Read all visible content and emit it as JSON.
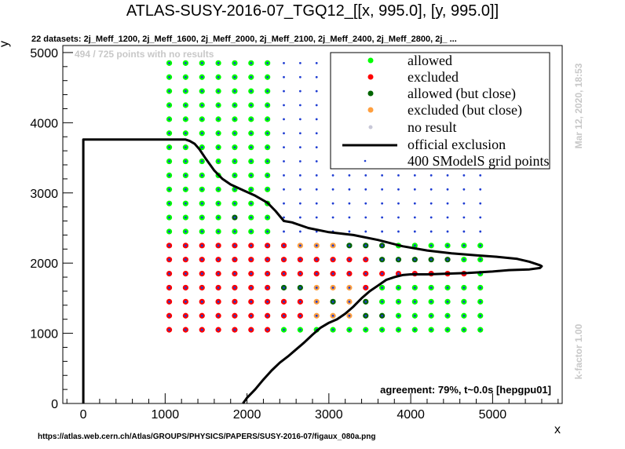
{
  "colors": {
    "allowed": "#00ff00",
    "excluded": "#ff0000",
    "allowed_close": "#006400",
    "excluded_close": "#ff9f3f",
    "no_result": "#0000ff",
    "grid_dot": "#1e3cd2",
    "official": "#000000",
    "stamp": "#c8c8c8"
  },
  "chart_data": {
    "type": "scatter",
    "title": "ATLAS-SUSY-2016-07_TGQ12_[[x, 995.0], [y, 995.0]]",
    "subtitle": "22 datasets: 2j_Meff_1200, 2j_Meff_1600, 2j_Meff_2000, 2j_Meff_2100, 2j_Meff_2400, 2j_Meff_2800, 2j_ ...",
    "xlabel": "x",
    "ylabel": "y",
    "xlim": [
      -250,
      5850
    ],
    "ylim": [
      0,
      5100
    ],
    "xticks": [
      0,
      1000,
      2000,
      3000,
      4000,
      5000
    ],
    "yticks": [
      0,
      1000,
      2000,
      3000,
      4000,
      5000
    ],
    "grid": false,
    "legend_placement": "top-right",
    "legend": [
      {
        "label": "allowed",
        "kind": "allowed"
      },
      {
        "label": "excluded",
        "kind": "excluded"
      },
      {
        "label": "allowed (but close)",
        "kind": "allowed_close"
      },
      {
        "label": "excluded (but close)",
        "kind": "excluded_close"
      },
      {
        "label": "no result",
        "kind": "no_result"
      },
      {
        "label": "official exclusion",
        "kind": "line"
      },
      {
        "label": "400 SModelS grid points",
        "kind": "grid"
      }
    ],
    "annotations": {
      "no_results": "494 / 725 points with no results",
      "agreement": "agreement: 79%, t~0.0s [hepgpu01]",
      "timestamp": "Mar 12, 2020, 18:53",
      "kfactor": "k-factor 1.00",
      "source": "https://atlas.web.cern.ch/Atlas/GROUPS/PHYSICS/PAPERS/SUSY-2016-07/figaux_080a.png"
    },
    "grid_x": [
      1050,
      1250,
      1450,
      1650,
      1850,
      2050,
      2250,
      2450,
      2650,
      2850,
      3050,
      3250,
      3450,
      3650,
      3850,
      4050,
      4250,
      4450,
      4650,
      4850
    ],
    "grid_y": [
      1050,
      1250,
      1450,
      1650,
      1850,
      2050,
      2250,
      2450,
      2650,
      2850,
      3050,
      3250,
      3450,
      3650,
      3850,
      4050,
      4250,
      4450,
      4650,
      4850
    ],
    "result_rows": [
      {
        "y": 4850,
        "codes": "AAAAAAA"
      },
      {
        "y": 4650,
        "codes": "AAAAAAA"
      },
      {
        "y": 4450,
        "codes": "AAAAAAA"
      },
      {
        "y": 4250,
        "codes": "AAAAAAA"
      },
      {
        "y": 4050,
        "codes": "AAAAAAA"
      },
      {
        "y": 3850,
        "codes": "AAAAAAA"
      },
      {
        "y": 3650,
        "codes": "AAAAAAA"
      },
      {
        "y": 3450,
        "codes": "AAAAAAA"
      },
      {
        "y": 3250,
        "codes": "AAAAAAA"
      },
      {
        "y": 3050,
        "codes": "AAAAAAA"
      },
      {
        "y": 2850,
        "codes": "AAAAAAA"
      },
      {
        "y": 2650,
        "codes": "AAAAGAA"
      },
      {
        "y": 2450,
        "codes": "AAAAAAA"
      },
      {
        "y": 2250,
        "codes": "XXXXXXXXOOOGGGAAAAAA"
      },
      {
        "y": 2050,
        "codes": "XXXXXXXXXXXXXGGGGGAA"
      },
      {
        "y": 1850,
        "codes": "XXXXXXXXXXXXXXXXXXXA"
      },
      {
        "y": 1650,
        "codes": "XXXXXXXGGOOOXAAAAAAA"
      },
      {
        "y": 1450,
        "codes": "XXXXXXXXXOGOGAAAAAAA"
      },
      {
        "y": 1250,
        "codes": "XXXXXXXXXOOOGGAAAAAA"
      },
      {
        "y": 1050,
        "codes": "XXXXXXXAAAAAAAAAAAAA"
      }
    ],
    "official_exclusion": [
      [
        0,
        0
      ],
      [
        0,
        3760
      ],
      [
        1250,
        3760
      ],
      [
        1300,
        3740
      ],
      [
        1360,
        3700
      ],
      [
        1420,
        3620
      ],
      [
        1500,
        3480
      ],
      [
        1600,
        3320
      ],
      [
        1700,
        3200
      ],
      [
        1800,
        3120
      ],
      [
        1950,
        3040
      ],
      [
        2100,
        2960
      ],
      [
        2250,
        2860
      ],
      [
        2350,
        2740
      ],
      [
        2450,
        2600
      ],
      [
        2550,
        2580
      ],
      [
        2750,
        2500
      ],
      [
        3000,
        2440
      ],
      [
        3300,
        2400
      ],
      [
        3600,
        2330
      ],
      [
        3900,
        2240
      ],
      [
        4200,
        2180
      ],
      [
        4500,
        2140
      ],
      [
        4800,
        2110
      ],
      [
        5050,
        2090
      ],
      [
        5300,
        2060
      ],
      [
        5450,
        2020
      ],
      [
        5580,
        1970
      ],
      [
        5600,
        1955
      ],
      [
        5580,
        1930
      ],
      [
        5450,
        1910
      ],
      [
        5200,
        1900
      ],
      [
        5000,
        1880
      ],
      [
        4700,
        1860
      ],
      [
        4450,
        1850
      ],
      [
        4200,
        1840
      ],
      [
        4000,
        1840
      ],
      [
        3900,
        1830
      ],
      [
        3800,
        1800
      ],
      [
        3700,
        1760
      ],
      [
        3600,
        1680
      ],
      [
        3500,
        1600
      ],
      [
        3400,
        1500
      ],
      [
        3300,
        1380
      ],
      [
        3200,
        1280
      ],
      [
        3100,
        1200
      ],
      [
        3000,
        1150
      ],
      [
        2900,
        1080
      ],
      [
        2800,
        980
      ],
      [
        2700,
        870
      ],
      [
        2600,
        770
      ],
      [
        2500,
        670
      ],
      [
        2400,
        580
      ],
      [
        2300,
        470
      ],
      [
        2200,
        340
      ],
      [
        2100,
        200
      ],
      [
        2000,
        80
      ],
      [
        1950,
        0
      ]
    ]
  }
}
